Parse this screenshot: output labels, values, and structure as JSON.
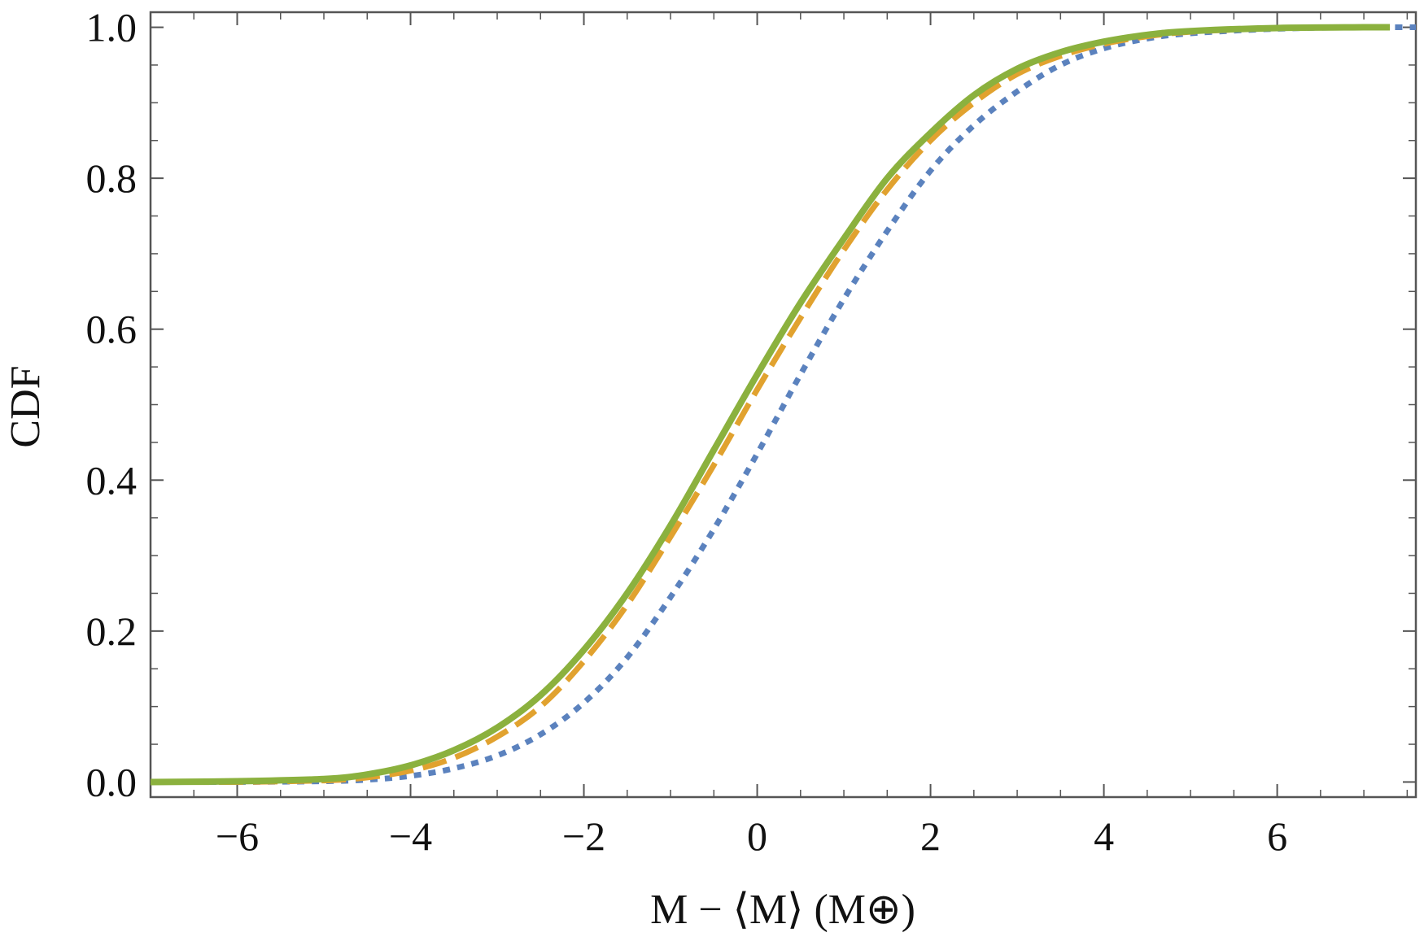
{
  "chart_data": {
    "type": "line",
    "title": "",
    "xlabel": "M − ⟨M⟩ (M⊕)",
    "ylabel": "CDF",
    "xlim": [
      -7.0,
      7.6
    ],
    "ylim": [
      -0.02,
      1.02
    ],
    "x_ticks": [
      -6,
      -4,
      -2,
      0,
      2,
      4,
      6
    ],
    "x_tick_labels": [
      "−6",
      "−4",
      "−2",
      "0",
      "2",
      "4",
      "6"
    ],
    "y_ticks": [
      0.0,
      0.2,
      0.4,
      0.6,
      0.8,
      1.0
    ],
    "y_tick_labels": [
      "0.0",
      "0.2",
      "0.4",
      "0.6",
      "0.8",
      "1.0"
    ],
    "grid": false,
    "legend": "none",
    "series": [
      {
        "color": "#5b82be",
        "style": "dotted",
        "x": [
          -7.0,
          -6.0,
          -5.0,
          -4.5,
          -4.0,
          -3.5,
          -3.0,
          -2.5,
          -2.0,
          -1.5,
          -1.0,
          -0.5,
          0.0,
          0.5,
          1.0,
          1.5,
          2.0,
          2.5,
          3.0,
          3.5,
          4.0,
          4.5,
          5.0,
          6.0,
          7.0,
          7.6
        ],
        "y": [
          0.0,
          0.0,
          0.001,
          0.003,
          0.008,
          0.018,
          0.035,
          0.063,
          0.105,
          0.165,
          0.245,
          0.335,
          0.435,
          0.54,
          0.64,
          0.73,
          0.81,
          0.87,
          0.915,
          0.95,
          0.972,
          0.985,
          0.992,
          0.998,
          1.0,
          1.0
        ]
      },
      {
        "color": "#e1a22f",
        "style": "dashed",
        "x": [
          -7.0,
          -6.0,
          -5.0,
          -4.5,
          -4.0,
          -3.5,
          -3.0,
          -2.5,
          -2.0,
          -1.5,
          -1.0,
          -0.5,
          0.0,
          0.5,
          1.0,
          1.5,
          2.0,
          2.5,
          3.0,
          3.5,
          4.0,
          4.5,
          5.0,
          6.0,
          7.0,
          7.3
        ],
        "y": [
          0.0,
          0.0,
          0.002,
          0.006,
          0.015,
          0.032,
          0.06,
          0.1,
          0.16,
          0.235,
          0.325,
          0.42,
          0.52,
          0.615,
          0.705,
          0.785,
          0.85,
          0.9,
          0.938,
          0.962,
          0.978,
          0.988,
          0.994,
          0.999,
          1.0,
          1.0
        ]
      },
      {
        "color": "#8bb13e",
        "style": "solid",
        "x": [
          -7.0,
          -6.0,
          -5.0,
          -4.5,
          -4.0,
          -3.5,
          -3.0,
          -2.5,
          -2.0,
          -1.5,
          -1.0,
          -0.5,
          0.0,
          0.5,
          1.0,
          1.5,
          2.0,
          2.5,
          3.0,
          3.5,
          4.0,
          4.5,
          5.0,
          6.0,
          7.0,
          7.3
        ],
        "y": [
          0.0,
          0.001,
          0.004,
          0.01,
          0.022,
          0.042,
          0.072,
          0.115,
          0.175,
          0.25,
          0.34,
          0.44,
          0.54,
          0.635,
          0.72,
          0.8,
          0.86,
          0.91,
          0.945,
          0.967,
          0.981,
          0.99,
          0.995,
          0.999,
          1.0,
          1.0
        ]
      }
    ]
  }
}
